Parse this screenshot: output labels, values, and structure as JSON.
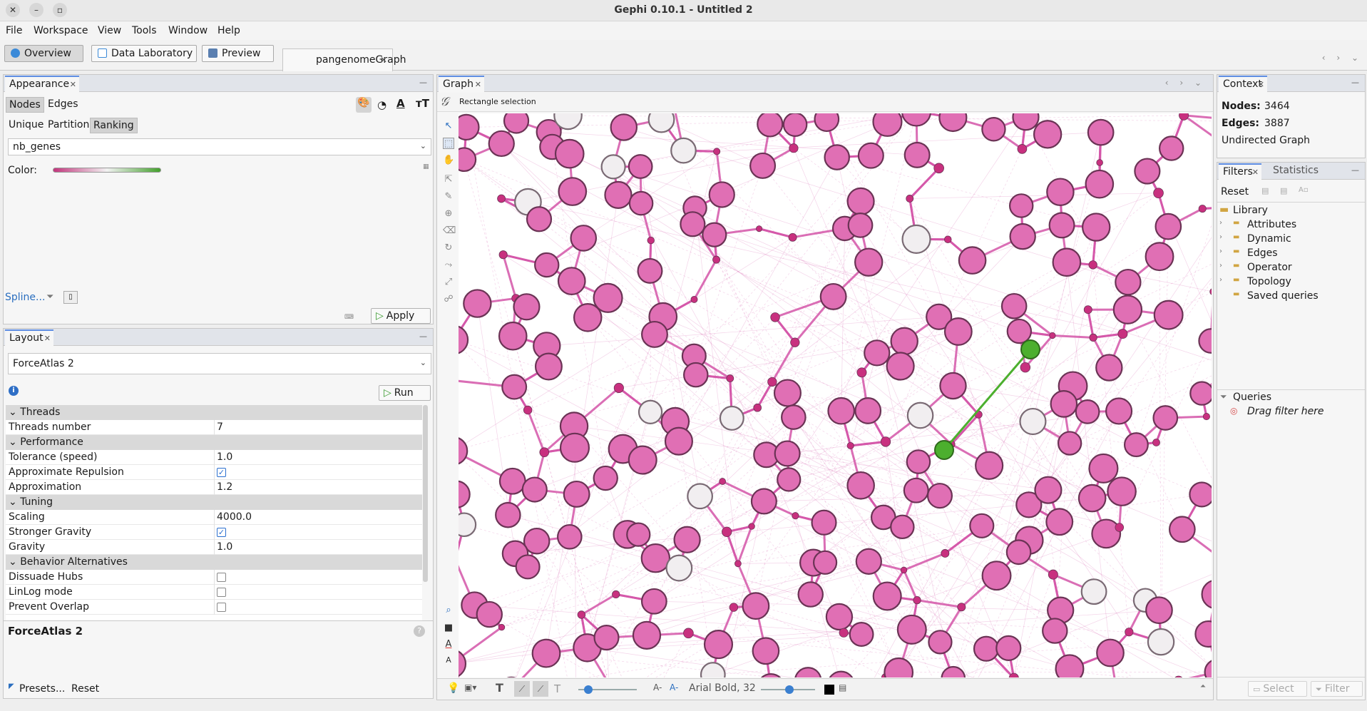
{
  "window": {
    "title": "Gephi 0.10.1 - Untitled 2"
  },
  "menu": [
    "File",
    "Workspace",
    "View",
    "Tools",
    "Window",
    "Help"
  ],
  "main_tabs": {
    "overview": "Overview",
    "data_lab": "Data Laboratory",
    "preview": "Preview"
  },
  "workspace_tab": "pangenomeGraph",
  "appearance": {
    "tab": "Appearance",
    "nodes": "Nodes",
    "edges": "Edges",
    "modes": [
      "Unique",
      "Partition",
      "Ranking"
    ],
    "attribute": "nb_genes",
    "color_label": "Color:",
    "spline": "Spline...",
    "apply": "Apply"
  },
  "layout": {
    "tab": "Layout",
    "algorithm": "ForceAtlas 2",
    "run": "Run",
    "categories": {
      "threads": "Threads",
      "performance": "Performance",
      "tuning": "Tuning",
      "behavior": "Behavior Alternatives"
    },
    "rows": {
      "threads_number": {
        "k": "Threads number",
        "v": "7"
      },
      "tolerance": {
        "k": "Tolerance (speed)",
        "v": "1.0"
      },
      "approx_repulsion": {
        "k": "Approximate Repulsion"
      },
      "approximation": {
        "k": "Approximation",
        "v": "1.2"
      },
      "scaling": {
        "k": "Scaling",
        "v": "4000.0"
      },
      "stronger_gravity": {
        "k": "Stronger Gravity"
      },
      "gravity": {
        "k": "Gravity",
        "v": "1.0"
      },
      "dissuade_hubs": {
        "k": "Dissuade Hubs"
      },
      "linlog": {
        "k": "LinLog mode"
      },
      "prevent_overlap": {
        "k": "Prevent Overlap"
      }
    },
    "description_title": "ForceAtlas 2",
    "presets": "Presets...",
    "reset": "Reset"
  },
  "graph": {
    "tab": "Graph",
    "tool_label": "Rectangle selection",
    "font": "Arial Bold, 32",
    "node_fill": "#e06fb4",
    "node_stroke": "#6b3355",
    "edge_color": "#d455a8",
    "highlight_color": "#4caf2e"
  },
  "context": {
    "tab": "Context",
    "nodes_label": "Nodes:",
    "nodes": "3464",
    "edges_label": "Edges:",
    "edges": "3887",
    "graph_type": "Undirected Graph"
  },
  "filters": {
    "tab": "Filters",
    "stats_tab": "Statistics",
    "reset": "Reset",
    "library": "Library",
    "items": [
      "Attributes",
      "Dynamic",
      "Edges",
      "Operator",
      "Topology",
      "Saved queries"
    ],
    "queries": "Queries",
    "drag_hint": "Drag filter here",
    "select": "Select",
    "filter": "Filter"
  }
}
